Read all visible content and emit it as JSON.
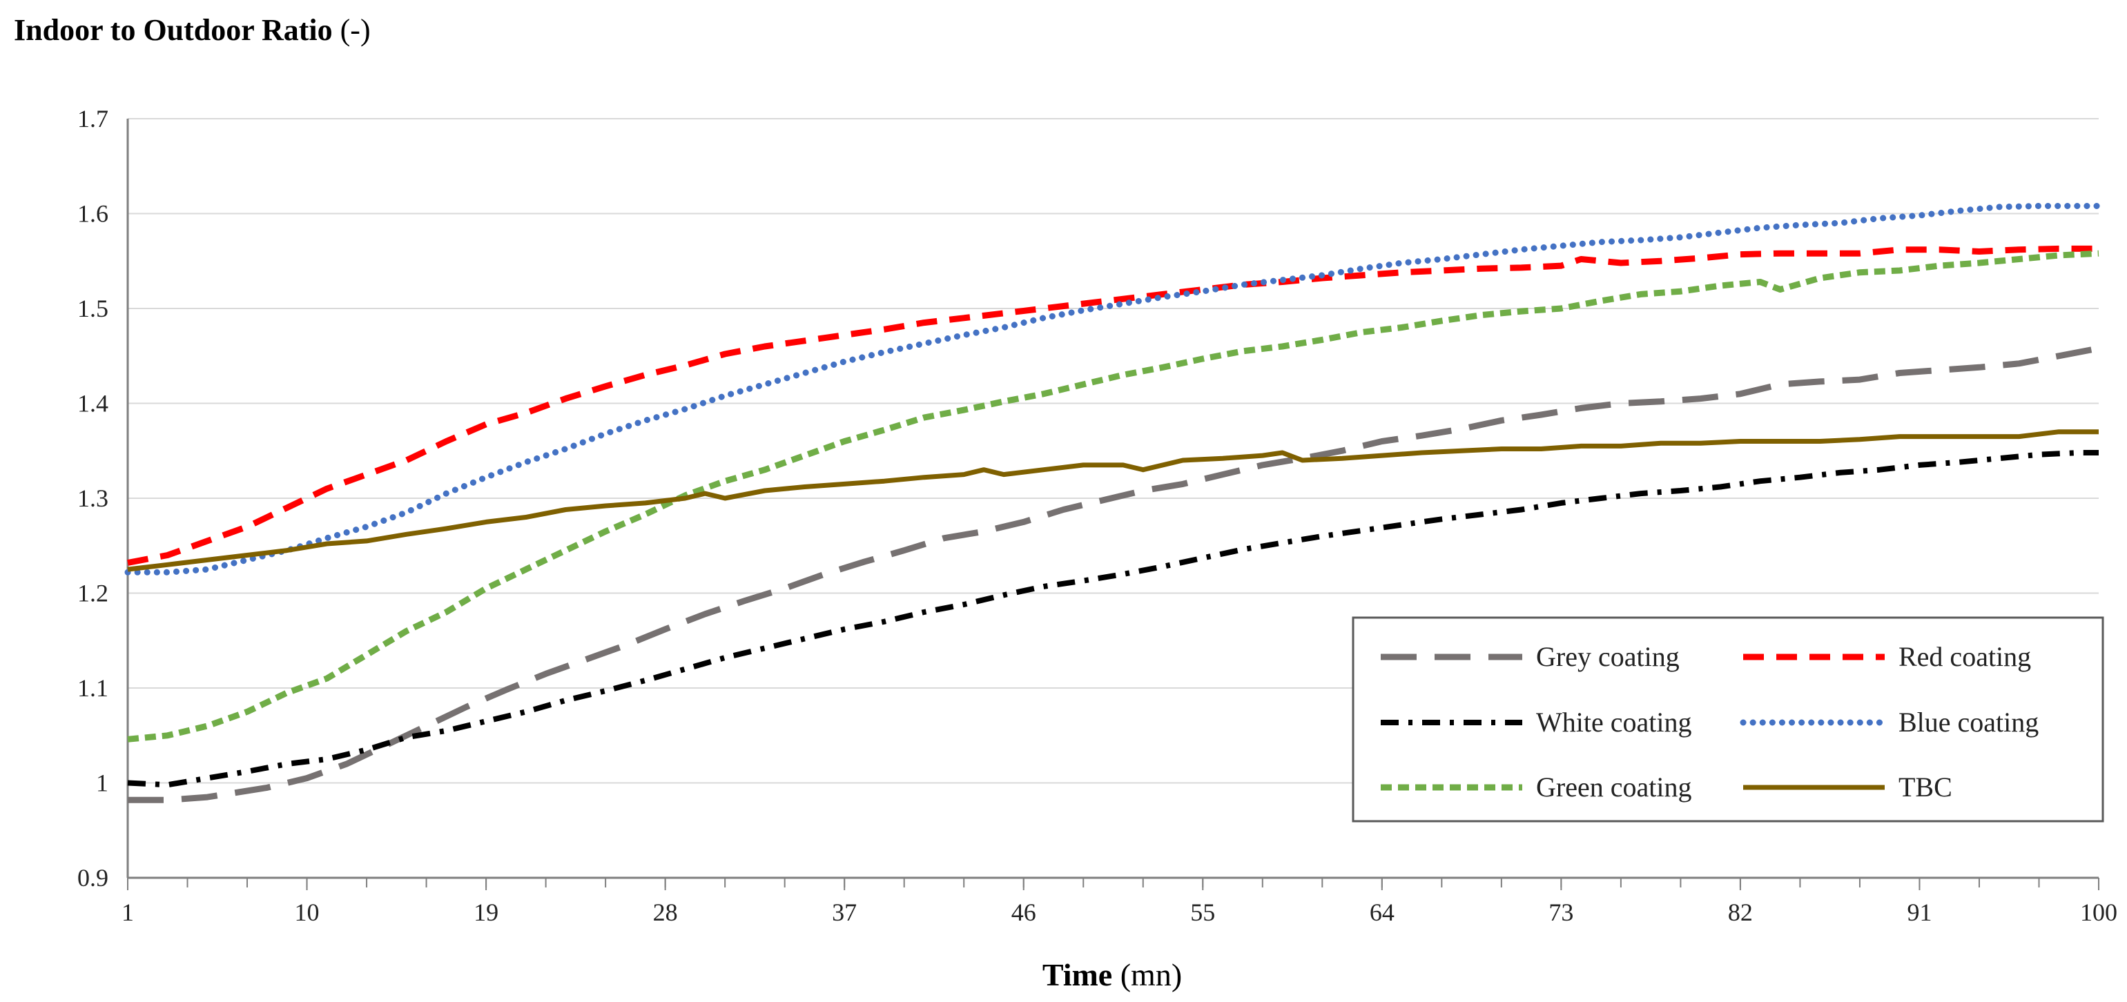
{
  "chart_data": {
    "type": "line",
    "title": "",
    "ylabel": {
      "bold": "Indoor to Outdoor Ratio",
      "normal": " (-)"
    },
    "xlabel": {
      "bold": "Time",
      "normal": " (mn)"
    },
    "ylim": [
      0.9,
      1.7
    ],
    "yticks": [
      "0.9",
      "1",
      "1.1",
      "1.2",
      "1.3",
      "1.4",
      "1.5",
      "1.6",
      "1.7"
    ],
    "xlim": [
      1,
      100
    ],
    "xticks": [
      "1",
      "10",
      "19",
      "28",
      "37",
      "46",
      "55",
      "64",
      "73",
      "82",
      "91",
      "100"
    ],
    "legend_position": "lower-right",
    "series": [
      {
        "name": "Grey coating",
        "color": "#767171",
        "style": "long-dash",
        "points": [
          [
            1,
            0.982
          ],
          [
            3,
            0.982
          ],
          [
            5,
            0.985
          ],
          [
            8,
            0.995
          ],
          [
            10,
            1.005
          ],
          [
            12,
            1.02
          ],
          [
            14,
            1.04
          ],
          [
            16,
            1.06
          ],
          [
            18,
            1.08
          ],
          [
            20,
            1.098
          ],
          [
            22,
            1.115
          ],
          [
            24,
            1.13
          ],
          [
            26,
            1.145
          ],
          [
            28,
            1.162
          ],
          [
            30,
            1.178
          ],
          [
            32,
            1.192
          ],
          [
            34,
            1.205
          ],
          [
            36,
            1.22
          ],
          [
            38,
            1.233
          ],
          [
            40,
            1.245
          ],
          [
            42,
            1.258
          ],
          [
            44,
            1.265
          ],
          [
            46,
            1.275
          ],
          [
            48,
            1.288
          ],
          [
            50,
            1.298
          ],
          [
            52,
            1.308
          ],
          [
            54,
            1.315
          ],
          [
            56,
            1.325
          ],
          [
            58,
            1.335
          ],
          [
            60,
            1.342
          ],
          [
            62,
            1.35
          ],
          [
            64,
            1.36
          ],
          [
            66,
            1.366
          ],
          [
            68,
            1.373
          ],
          [
            70,
            1.382
          ],
          [
            72,
            1.388
          ],
          [
            74,
            1.395
          ],
          [
            76,
            1.4
          ],
          [
            78,
            1.402
          ],
          [
            80,
            1.405
          ],
          [
            82,
            1.41
          ],
          [
            84,
            1.42
          ],
          [
            86,
            1.423
          ],
          [
            88,
            1.425
          ],
          [
            90,
            1.432
          ],
          [
            92,
            1.435
          ],
          [
            94,
            1.438
          ],
          [
            96,
            1.442
          ],
          [
            98,
            1.45
          ],
          [
            100,
            1.458
          ]
        ]
      },
      {
        "name": "Red coating",
        "color": "#ff0000",
        "style": "dash",
        "points": [
          [
            1,
            1.232
          ],
          [
            3,
            1.24
          ],
          [
            5,
            1.255
          ],
          [
            7,
            1.27
          ],
          [
            9,
            1.29
          ],
          [
            11,
            1.31
          ],
          [
            13,
            1.325
          ],
          [
            15,
            1.34
          ],
          [
            17,
            1.36
          ],
          [
            19,
            1.378
          ],
          [
            21,
            1.39
          ],
          [
            23,
            1.405
          ],
          [
            25,
            1.418
          ],
          [
            27,
            1.43
          ],
          [
            29,
            1.44
          ],
          [
            31,
            1.452
          ],
          [
            33,
            1.46
          ],
          [
            35,
            1.466
          ],
          [
            37,
            1.472
          ],
          [
            39,
            1.478
          ],
          [
            41,
            1.485
          ],
          [
            43,
            1.49
          ],
          [
            45,
            1.495
          ],
          [
            47,
            1.5
          ],
          [
            49,
            1.505
          ],
          [
            51,
            1.51
          ],
          [
            53,
            1.515
          ],
          [
            55,
            1.52
          ],
          [
            57,
            1.525
          ],
          [
            59,
            1.528
          ],
          [
            61,
            1.532
          ],
          [
            63,
            1.535
          ],
          [
            65,
            1.538
          ],
          [
            67,
            1.54
          ],
          [
            69,
            1.542
          ],
          [
            71,
            1.543
          ],
          [
            73,
            1.545
          ],
          [
            74,
            1.552
          ],
          [
            76,
            1.548
          ],
          [
            78,
            1.55
          ],
          [
            80,
            1.553
          ],
          [
            82,
            1.557
          ],
          [
            84,
            1.558
          ],
          [
            86,
            1.558
          ],
          [
            88,
            1.558
          ],
          [
            90,
            1.562
          ],
          [
            92,
            1.562
          ],
          [
            94,
            1.56
          ],
          [
            96,
            1.562
          ],
          [
            98,
            1.563
          ],
          [
            100,
            1.563
          ]
        ]
      },
      {
        "name": "White coating",
        "color": "#000000",
        "style": "dash-dot",
        "points": [
          [
            1,
            1.0
          ],
          [
            3,
            0.998
          ],
          [
            5,
            1.005
          ],
          [
            7,
            1.012
          ],
          [
            9,
            1.02
          ],
          [
            11,
            1.025
          ],
          [
            13,
            1.035
          ],
          [
            15,
            1.048
          ],
          [
            17,
            1.055
          ],
          [
            19,
            1.065
          ],
          [
            21,
            1.075
          ],
          [
            23,
            1.087
          ],
          [
            25,
            1.097
          ],
          [
            27,
            1.108
          ],
          [
            29,
            1.12
          ],
          [
            31,
            1.132
          ],
          [
            33,
            1.142
          ],
          [
            35,
            1.152
          ],
          [
            37,
            1.162
          ],
          [
            39,
            1.17
          ],
          [
            41,
            1.18
          ],
          [
            43,
            1.188
          ],
          [
            45,
            1.198
          ],
          [
            47,
            1.207
          ],
          [
            49,
            1.213
          ],
          [
            51,
            1.22
          ],
          [
            53,
            1.228
          ],
          [
            55,
            1.237
          ],
          [
            57,
            1.246
          ],
          [
            59,
            1.253
          ],
          [
            61,
            1.26
          ],
          [
            63,
            1.266
          ],
          [
            65,
            1.272
          ],
          [
            67,
            1.278
          ],
          [
            69,
            1.283
          ],
          [
            71,
            1.288
          ],
          [
            73,
            1.295
          ],
          [
            75,
            1.3
          ],
          [
            77,
            1.305
          ],
          [
            79,
            1.308
          ],
          [
            81,
            1.312
          ],
          [
            83,
            1.318
          ],
          [
            85,
            1.322
          ],
          [
            87,
            1.327
          ],
          [
            89,
            1.33
          ],
          [
            91,
            1.335
          ],
          [
            93,
            1.338
          ],
          [
            95,
            1.342
          ],
          [
            97,
            1.346
          ],
          [
            99,
            1.348
          ],
          [
            100,
            1.348
          ]
        ]
      },
      {
        "name": "Blue coating",
        "color": "#4472c4",
        "style": "dot",
        "points": [
          [
            1,
            1.222
          ],
          [
            3,
            1.222
          ],
          [
            5,
            1.225
          ],
          [
            7,
            1.235
          ],
          [
            9,
            1.245
          ],
          [
            11,
            1.258
          ],
          [
            13,
            1.27
          ],
          [
            15,
            1.285
          ],
          [
            17,
            1.305
          ],
          [
            19,
            1.322
          ],
          [
            21,
            1.338
          ],
          [
            23,
            1.352
          ],
          [
            25,
            1.368
          ],
          [
            27,
            1.382
          ],
          [
            29,
            1.394
          ],
          [
            31,
            1.408
          ],
          [
            33,
            1.42
          ],
          [
            35,
            1.432
          ],
          [
            37,
            1.444
          ],
          [
            39,
            1.454
          ],
          [
            41,
            1.463
          ],
          [
            43,
            1.472
          ],
          [
            45,
            1.48
          ],
          [
            47,
            1.49
          ],
          [
            49,
            1.498
          ],
          [
            51,
            1.505
          ],
          [
            53,
            1.512
          ],
          [
            55,
            1.518
          ],
          [
            57,
            1.525
          ],
          [
            59,
            1.53
          ],
          [
            61,
            1.535
          ],
          [
            63,
            1.542
          ],
          [
            65,
            1.548
          ],
          [
            67,
            1.552
          ],
          [
            69,
            1.557
          ],
          [
            71,
            1.562
          ],
          [
            73,
            1.566
          ],
          [
            75,
            1.57
          ],
          [
            77,
            1.572
          ],
          [
            79,
            1.575
          ],
          [
            81,
            1.58
          ],
          [
            83,
            1.585
          ],
          [
            85,
            1.588
          ],
          [
            87,
            1.59
          ],
          [
            89,
            1.595
          ],
          [
            91,
            1.598
          ],
          [
            93,
            1.603
          ],
          [
            95,
            1.607
          ],
          [
            97,
            1.608
          ],
          [
            100,
            1.608
          ]
        ]
      },
      {
        "name": "Green coating",
        "color": "#70ad47",
        "style": "short-dash",
        "points": [
          [
            1,
            1.046
          ],
          [
            3,
            1.05
          ],
          [
            5,
            1.06
          ],
          [
            7,
            1.075
          ],
          [
            9,
            1.095
          ],
          [
            11,
            1.11
          ],
          [
            13,
            1.135
          ],
          [
            15,
            1.16
          ],
          [
            17,
            1.18
          ],
          [
            19,
            1.205
          ],
          [
            21,
            1.225
          ],
          [
            23,
            1.245
          ],
          [
            25,
            1.265
          ],
          [
            27,
            1.283
          ],
          [
            29,
            1.303
          ],
          [
            31,
            1.318
          ],
          [
            33,
            1.33
          ],
          [
            35,
            1.345
          ],
          [
            37,
            1.36
          ],
          [
            39,
            1.372
          ],
          [
            41,
            1.385
          ],
          [
            43,
            1.393
          ],
          [
            45,
            1.402
          ],
          [
            47,
            1.41
          ],
          [
            49,
            1.42
          ],
          [
            51,
            1.43
          ],
          [
            53,
            1.438
          ],
          [
            55,
            1.447
          ],
          [
            57,
            1.455
          ],
          [
            59,
            1.46
          ],
          [
            61,
            1.467
          ],
          [
            63,
            1.475
          ],
          [
            65,
            1.48
          ],
          [
            67,
            1.487
          ],
          [
            69,
            1.493
          ],
          [
            71,
            1.497
          ],
          [
            73,
            1.5
          ],
          [
            75,
            1.508
          ],
          [
            77,
            1.515
          ],
          [
            79,
            1.518
          ],
          [
            81,
            1.524
          ],
          [
            83,
            1.528
          ],
          [
            84,
            1.52
          ],
          [
            86,
            1.532
          ],
          [
            88,
            1.538
          ],
          [
            90,
            1.54
          ],
          [
            92,
            1.545
          ],
          [
            94,
            1.548
          ],
          [
            96,
            1.552
          ],
          [
            98,
            1.556
          ],
          [
            100,
            1.558
          ]
        ]
      },
      {
        "name": "TBC",
        "color": "#7f6000",
        "style": "solid",
        "points": [
          [
            1,
            1.225
          ],
          [
            3,
            1.23
          ],
          [
            5,
            1.235
          ],
          [
            7,
            1.24
          ],
          [
            9,
            1.245
          ],
          [
            11,
            1.252
          ],
          [
            13,
            1.255
          ],
          [
            15,
            1.262
          ],
          [
            17,
            1.268
          ],
          [
            19,
            1.275
          ],
          [
            21,
            1.28
          ],
          [
            23,
            1.288
          ],
          [
            25,
            1.292
          ],
          [
            27,
            1.295
          ],
          [
            29,
            1.3
          ],
          [
            30,
            1.305
          ],
          [
            31,
            1.3
          ],
          [
            33,
            1.308
          ],
          [
            35,
            1.312
          ],
          [
            37,
            1.315
          ],
          [
            39,
            1.318
          ],
          [
            41,
            1.322
          ],
          [
            43,
            1.325
          ],
          [
            44,
            1.33
          ],
          [
            45,
            1.325
          ],
          [
            47,
            1.33
          ],
          [
            49,
            1.335
          ],
          [
            51,
            1.335
          ],
          [
            52,
            1.33
          ],
          [
            54,
            1.34
          ],
          [
            56,
            1.342
          ],
          [
            58,
            1.345
          ],
          [
            59,
            1.348
          ],
          [
            60,
            1.34
          ],
          [
            62,
            1.342
          ],
          [
            64,
            1.345
          ],
          [
            66,
            1.348
          ],
          [
            68,
            1.35
          ],
          [
            70,
            1.352
          ],
          [
            72,
            1.352
          ],
          [
            74,
            1.355
          ],
          [
            76,
            1.355
          ],
          [
            78,
            1.358
          ],
          [
            80,
            1.358
          ],
          [
            82,
            1.36
          ],
          [
            84,
            1.36
          ],
          [
            86,
            1.36
          ],
          [
            88,
            1.362
          ],
          [
            90,
            1.365
          ],
          [
            92,
            1.365
          ],
          [
            94,
            1.365
          ],
          [
            96,
            1.365
          ],
          [
            98,
            1.37
          ],
          [
            100,
            1.37
          ]
        ]
      }
    ]
  }
}
